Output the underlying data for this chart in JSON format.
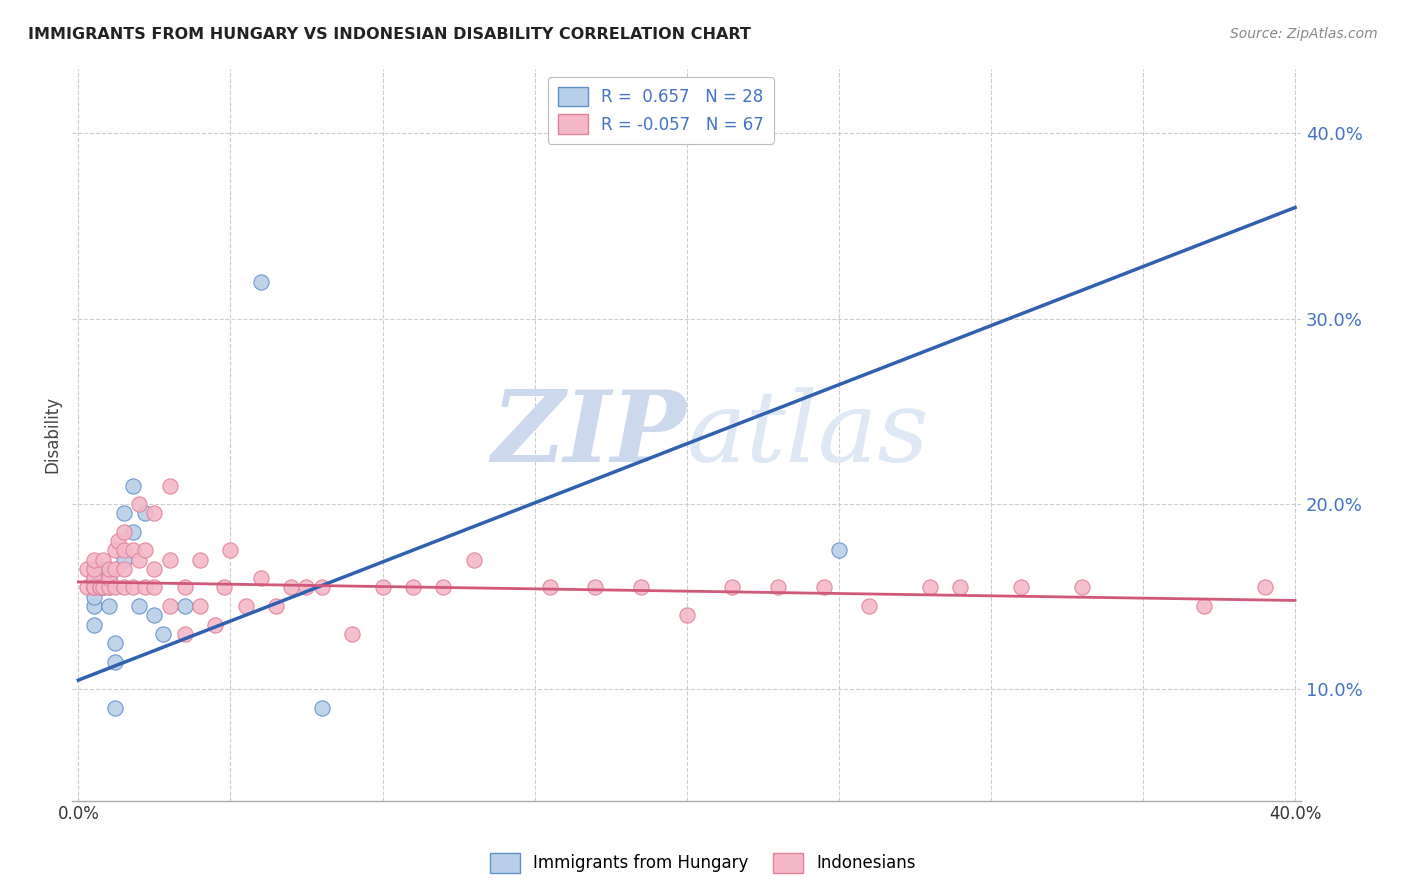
{
  "title": "IMMIGRANTS FROM HUNGARY VS INDONESIAN DISABILITY CORRELATION CHART",
  "source": "Source: ZipAtlas.com",
  "ylabel": "Disability",
  "ytick_labels": [
    "10.0%",
    "20.0%",
    "30.0%",
    "40.0%"
  ],
  "ytick_values": [
    0.1,
    0.2,
    0.3,
    0.4
  ],
  "xlim": [
    -0.002,
    0.402
  ],
  "ylim": [
    0.04,
    0.435
  ],
  "legend_r1": "R =  0.657   N = 28",
  "legend_r2": "R = -0.057   N = 67",
  "blue_fill": "#b8d0e8",
  "pink_fill": "#f4b8c8",
  "blue_edge": "#6090c8",
  "pink_edge": "#e08098",
  "blue_line_color": "#3060b0",
  "pink_line_color": "#d05878",
  "blue_scatter_x": [
    0.005,
    0.005,
    0.005,
    0.005,
    0.005,
    0.005,
    0.008,
    0.008,
    0.008,
    0.008,
    0.01,
    0.01,
    0.01,
    0.012,
    0.012,
    0.012,
    0.015,
    0.015,
    0.018,
    0.018,
    0.02,
    0.022,
    0.025,
    0.028,
    0.035,
    0.06,
    0.08,
    0.25
  ],
  "blue_scatter_y": [
    0.155,
    0.16,
    0.145,
    0.15,
    0.135,
    0.165,
    0.16,
    0.155,
    0.165,
    0.155,
    0.155,
    0.145,
    0.16,
    0.115,
    0.125,
    0.09,
    0.17,
    0.195,
    0.21,
    0.185,
    0.145,
    0.195,
    0.14,
    0.13,
    0.145,
    0.32,
    0.09,
    0.175
  ],
  "pink_scatter_x": [
    0.003,
    0.003,
    0.005,
    0.005,
    0.005,
    0.005,
    0.005,
    0.005,
    0.007,
    0.007,
    0.008,
    0.008,
    0.01,
    0.01,
    0.01,
    0.012,
    0.012,
    0.012,
    0.013,
    0.015,
    0.015,
    0.015,
    0.015,
    0.018,
    0.018,
    0.02,
    0.02,
    0.022,
    0.022,
    0.025,
    0.025,
    0.025,
    0.03,
    0.03,
    0.03,
    0.035,
    0.035,
    0.04,
    0.04,
    0.045,
    0.048,
    0.05,
    0.055,
    0.06,
    0.065,
    0.07,
    0.075,
    0.08,
    0.09,
    0.1,
    0.11,
    0.12,
    0.13,
    0.155,
    0.17,
    0.185,
    0.2,
    0.215,
    0.23,
    0.245,
    0.26,
    0.28,
    0.29,
    0.31,
    0.33,
    0.37,
    0.39
  ],
  "pink_scatter_y": [
    0.155,
    0.165,
    0.155,
    0.155,
    0.16,
    0.165,
    0.155,
    0.17,
    0.155,
    0.155,
    0.17,
    0.155,
    0.155,
    0.16,
    0.165,
    0.175,
    0.165,
    0.155,
    0.18,
    0.175,
    0.165,
    0.185,
    0.155,
    0.155,
    0.175,
    0.17,
    0.2,
    0.175,
    0.155,
    0.155,
    0.165,
    0.195,
    0.21,
    0.17,
    0.145,
    0.155,
    0.13,
    0.17,
    0.145,
    0.135,
    0.155,
    0.175,
    0.145,
    0.16,
    0.145,
    0.155,
    0.155,
    0.155,
    0.13,
    0.155,
    0.155,
    0.155,
    0.17,
    0.155,
    0.155,
    0.155,
    0.14,
    0.155,
    0.155,
    0.155,
    0.145,
    0.155,
    0.155,
    0.155,
    0.155,
    0.145,
    0.155
  ],
  "blue_line": {
    "x0": 0.0,
    "x1": 0.4,
    "y0": 0.105,
    "y1": 0.36
  },
  "pink_line": {
    "x0": 0.0,
    "x1": 0.4,
    "y0": 0.158,
    "y1": 0.148
  },
  "watermark_zip": "ZIP",
  "watermark_atlas": "atlas",
  "watermark_color": "#ccd8ee",
  "background_color": "#ffffff",
  "grid_color": "#cccccc",
  "tick_color": "#4472c4"
}
